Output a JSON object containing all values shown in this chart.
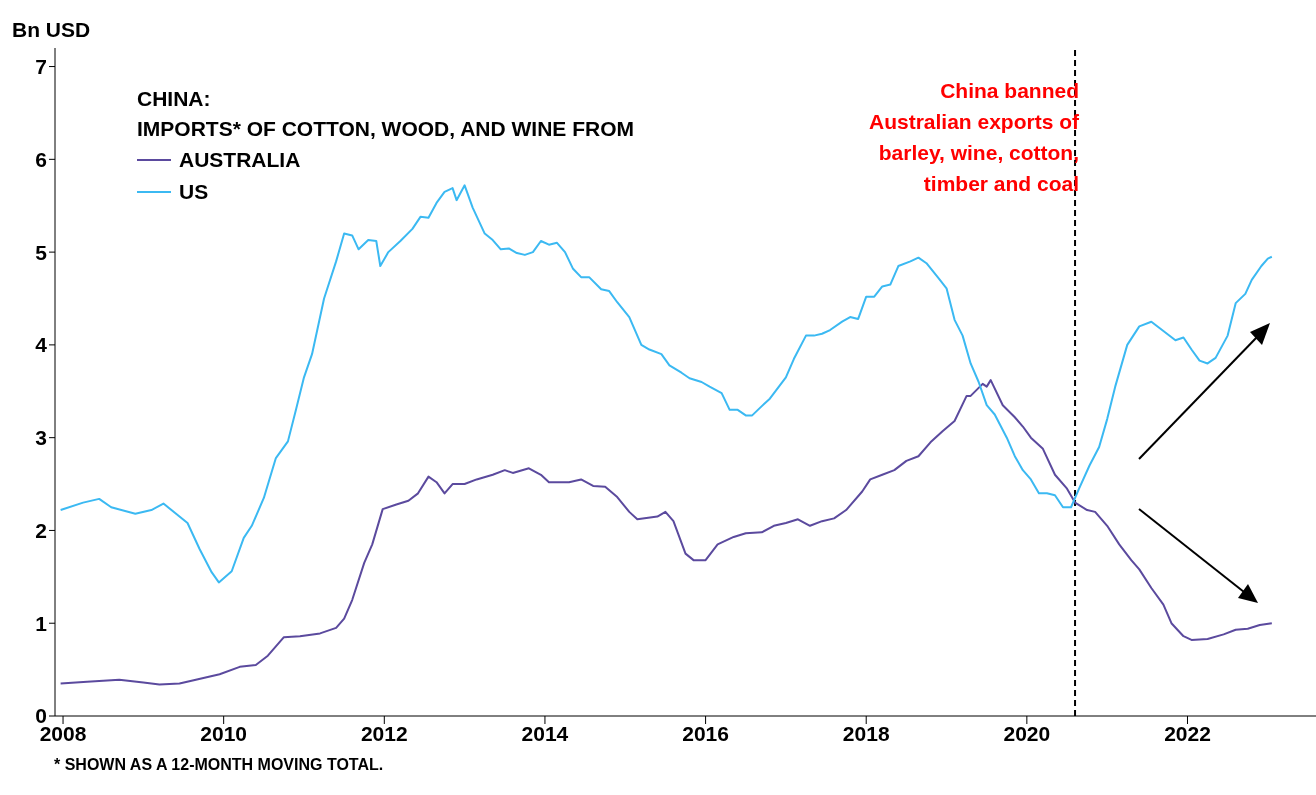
{
  "chart_data": {
    "type": "line",
    "title": "CHINA:",
    "subtitle": "IMPORTS* OF COTTON, WOOD, AND WINE FROM",
    "ylabel": "Bn USD",
    "annotations": [
      "* SHOWN AS A 12-MONTH MOVING TOTAL."
    ],
    "xlim": [
      2007.9,
      2023.6
    ],
    "xticks": [
      2008,
      2010,
      2012,
      2014,
      2016,
      2018,
      2020,
      2022
    ],
    "ylim": [
      0,
      7.2
    ],
    "yticks": [
      0,
      1,
      2,
      3,
      4,
      5,
      6,
      7
    ],
    "grid": false,
    "legend": "top left",
    "marker": "none",
    "line_style": "solid",
    "ref_lines": [
      {
        "axis": "x",
        "value": 2020.6,
        "label": "China banned Australian exports of barley, wine, cotton, timber and coal",
        "color": "#000000",
        "line_style": "dashed"
      }
    ],
    "series": [
      {
        "name": "AUSTRALIA",
        "color": "#5b4a9e",
        "x": [
          2007.97,
          2008.3,
          2008.7,
          2009.0,
          2009.2,
          2009.45,
          2009.6,
          2009.95,
          2010.2,
          2010.4,
          2010.55,
          2010.75,
          2010.95,
          2011.2,
          2011.4,
          2011.5,
          2011.6,
          2011.75,
          2011.85,
          2011.98,
          2012.15,
          2012.3,
          2012.42,
          2012.55,
          2012.65,
          2012.75,
          2012.85,
          2013.0,
          2013.15,
          2013.35,
          2013.5,
          2013.6,
          2013.8,
          2013.95,
          2014.05,
          2014.3,
          2014.45,
          2014.6,
          2014.75,
          2014.9,
          2015.05,
          2015.15,
          2015.4,
          2015.5,
          2015.6,
          2015.75,
          2015.85,
          2016.0,
          2016.15,
          2016.35,
          2016.5,
          2016.7,
          2016.85,
          2017.0,
          2017.15,
          2017.3,
          2017.45,
          2017.6,
          2017.75,
          2017.95,
          2018.05,
          2018.2,
          2018.35,
          2018.5,
          2018.65,
          2018.8,
          2018.95,
          2019.1,
          2019.25,
          2019.3,
          2019.45,
          2019.5,
          2019.55,
          2019.7,
          2019.85,
          2019.95,
          2020.05,
          2020.2,
          2020.35,
          2020.5,
          2020.6,
          2020.75,
          2020.85,
          2021.0,
          2021.15,
          2021.3,
          2021.4,
          2021.55,
          2021.7,
          2021.8,
          2021.95,
          2022.05,
          2022.25,
          2022.45,
          2022.6,
          2022.75,
          2022.9,
          2023.05
        ],
        "values": [
          0.35,
          0.37,
          0.39,
          0.36,
          0.34,
          0.35,
          0.38,
          0.45,
          0.53,
          0.55,
          0.65,
          0.85,
          0.86,
          0.89,
          0.95,
          1.05,
          1.25,
          1.65,
          1.85,
          2.23,
          2.28,
          2.32,
          2.4,
          2.58,
          2.52,
          2.4,
          2.5,
          2.5,
          2.55,
          2.6,
          2.65,
          2.62,
          2.67,
          2.6,
          2.52,
          2.52,
          2.55,
          2.48,
          2.47,
          2.36,
          2.2,
          2.12,
          2.15,
          2.2,
          2.1,
          1.75,
          1.68,
          1.68,
          1.85,
          1.93,
          1.97,
          1.98,
          2.05,
          2.08,
          2.12,
          2.05,
          2.1,
          2.13,
          2.22,
          2.42,
          2.55,
          2.6,
          2.65,
          2.75,
          2.8,
          2.95,
          3.07,
          3.18,
          3.45,
          3.45,
          3.58,
          3.55,
          3.62,
          3.35,
          3.22,
          3.12,
          3.0,
          2.88,
          2.6,
          2.45,
          2.3,
          2.22,
          2.2,
          2.05,
          1.85,
          1.68,
          1.58,
          1.38,
          1.2,
          1.0,
          0.86,
          0.82,
          0.83,
          0.88,
          0.93,
          0.94,
          0.98,
          1.0
        ]
      },
      {
        "name": "US",
        "color": "#3bb9f2",
        "x": [
          2007.97,
          2008.25,
          2008.45,
          2008.6,
          2008.9,
          2009.1,
          2009.25,
          2009.55,
          2009.7,
          2009.85,
          2009.94,
          2010.1,
          2010.25,
          2010.35,
          2010.5,
          2010.65,
          2010.8,
          2010.9,
          2011.0,
          2011.1,
          2011.25,
          2011.4,
          2011.5,
          2011.6,
          2011.68,
          2011.8,
          2011.9,
          2011.95,
          2012.05,
          2012.2,
          2012.35,
          2012.45,
          2012.55,
          2012.65,
          2012.75,
          2012.85,
          2012.9,
          2013.0,
          2013.1,
          2013.25,
          2013.35,
          2013.45,
          2013.55,
          2013.65,
          2013.75,
          2013.85,
          2013.95,
          2014.05,
          2014.15,
          2014.25,
          2014.35,
          2014.45,
          2014.55,
          2014.7,
          2014.8,
          2014.9,
          2015.05,
          2015.2,
          2015.3,
          2015.45,
          2015.55,
          2015.7,
          2015.8,
          2015.95,
          2016.05,
          2016.2,
          2016.3,
          2016.4,
          2016.5,
          2016.58,
          2016.7,
          2016.8,
          2017.0,
          2017.1,
          2017.25,
          2017.35,
          2017.45,
          2017.55,
          2017.7,
          2017.8,
          2017.9,
          2018.0,
          2018.1,
          2018.2,
          2018.3,
          2018.4,
          2018.55,
          2018.65,
          2018.75,
          2018.9,
          2019.0,
          2019.1,
          2019.2,
          2019.3,
          2019.4,
          2019.5,
          2019.6,
          2019.75,
          2019.85,
          2019.95,
          2020.05,
          2020.15,
          2020.25,
          2020.35,
          2020.45,
          2020.55,
          2020.65,
          2020.78,
          2020.9,
          2021.0,
          2021.1,
          2021.25,
          2021.4,
          2021.55,
          2021.7,
          2021.85,
          2021.95,
          2022.05,
          2022.15,
          2022.25,
          2022.35,
          2022.5,
          2022.6,
          2022.72,
          2022.8,
          2022.92,
          2023.0,
          2023.05
        ],
        "values": [
          2.22,
          2.3,
          2.34,
          2.25,
          2.18,
          2.22,
          2.29,
          2.08,
          1.8,
          1.55,
          1.44,
          1.56,
          1.92,
          2.05,
          2.35,
          2.78,
          2.96,
          3.3,
          3.65,
          3.9,
          4.5,
          4.9,
          5.2,
          5.18,
          5.03,
          5.13,
          5.12,
          4.85,
          5.0,
          5.12,
          5.25,
          5.38,
          5.37,
          5.53,
          5.65,
          5.69,
          5.56,
          5.72,
          5.48,
          5.2,
          5.13,
          5.03,
          5.04,
          4.99,
          4.97,
          5.0,
          5.12,
          5.08,
          5.1,
          5.0,
          4.82,
          4.73,
          4.73,
          4.6,
          4.58,
          4.46,
          4.3,
          4.0,
          3.95,
          3.9,
          3.78,
          3.7,
          3.64,
          3.6,
          3.55,
          3.48,
          3.3,
          3.3,
          3.24,
          3.24,
          3.34,
          3.42,
          3.65,
          3.85,
          4.1,
          4.1,
          4.12,
          4.16,
          4.25,
          4.3,
          4.28,
          4.52,
          4.52,
          4.63,
          4.65,
          4.85,
          4.9,
          4.94,
          4.88,
          4.72,
          4.61,
          4.27,
          4.1,
          3.8,
          3.6,
          3.35,
          3.25,
          3.0,
          2.8,
          2.65,
          2.55,
          2.4,
          2.4,
          2.38,
          2.25,
          2.25,
          2.45,
          2.7,
          2.9,
          3.2,
          3.55,
          4.0,
          4.2,
          4.25,
          4.15,
          4.05,
          4.08,
          3.95,
          3.83,
          3.8,
          3.86,
          4.1,
          4.45,
          4.55,
          4.7,
          4.85,
          4.93,
          4.95
        ]
      }
    ]
  }
}
